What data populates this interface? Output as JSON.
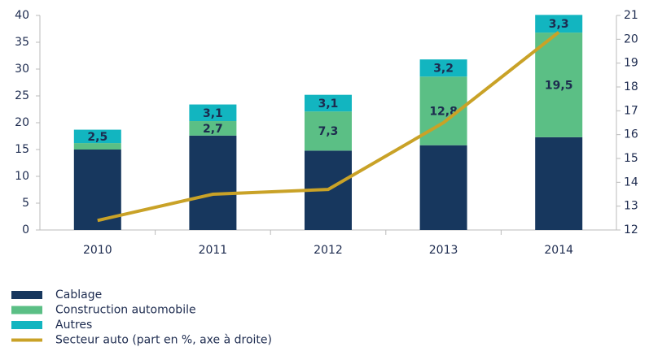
{
  "chart_data": {
    "type": "bar",
    "stacked": true,
    "categories": [
      "2010",
      "2011",
      "2012",
      "2013",
      "2014"
    ],
    "series": [
      {
        "name": "Cablage",
        "color": "#17375e",
        "values": [
          15.0,
          17.6,
          14.8,
          15.8,
          17.3
        ]
      },
      {
        "name": "Construction automobile",
        "color": "#5bbf85",
        "values": [
          1.2,
          2.7,
          7.3,
          12.8,
          19.5
        ],
        "value_labels": [
          null,
          "2,7",
          "7,3",
          "12,8",
          "19,5"
        ],
        "label_color": "#ffffff"
      },
      {
        "name": "Autres",
        "color": "#12b5c0",
        "values": [
          2.5,
          3.1,
          3.1,
          3.2,
          3.3
        ],
        "value_labels": [
          "2,5",
          "3,1",
          "3,1",
          "3,2",
          "3,3"
        ],
        "label_color": "#17375e"
      },
      {
        "name": "Secteur auto (part en %, axe à droite)",
        "color": "#c9a227",
        "type": "line",
        "axis": "y2",
        "values": [
          12.4,
          13.5,
          13.7,
          16.5,
          20.3
        ]
      }
    ],
    "ylim": [
      0,
      40
    ],
    "yticks": [
      0,
      5,
      10,
      15,
      20,
      25,
      30,
      35,
      40
    ],
    "y2lim": [
      12,
      21
    ],
    "y2ticks": [
      12,
      13,
      14,
      15,
      16,
      17,
      18,
      19,
      20,
      21
    ],
    "grid": false,
    "legend": "bottom-left"
  }
}
